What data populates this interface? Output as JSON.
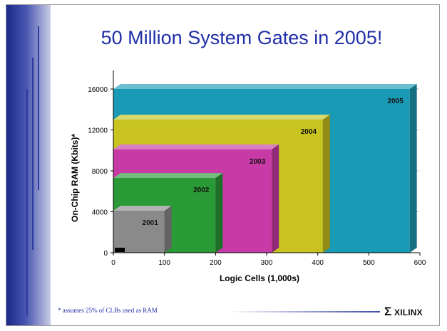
{
  "slide": {
    "title": "50 Million System Gates in 2005!",
    "footnote": "* assumes 25% of CLBs used as RAM",
    "logo": "XILINX",
    "logo_mark": "Σ"
  },
  "chart_data": {
    "type": "area",
    "title": "50 Million System Gates in 2005!",
    "xlabel": "Logic Cells (1,000s)",
    "ylabel": "On-Chip RAM (Kbits)*",
    "xlim": [
      0,
      600
    ],
    "ylim": [
      0,
      16000
    ],
    "x_ticks": [
      0,
      100,
      200,
      300,
      400,
      500,
      600
    ],
    "y_ticks": [
      0,
      4000,
      8000,
      12000,
      16000
    ],
    "grid": "horizontal dashed",
    "series": [
      {
        "name": "2005",
        "logic_cells": 580,
        "ram_kbits": 16000,
        "color": "#1a9bb5"
      },
      {
        "name": "2004",
        "logic_cells": 410,
        "ram_kbits": 13000,
        "color": "#c8c31e"
      },
      {
        "name": "2003",
        "logic_cells": 310,
        "ram_kbits": 10100,
        "color": "#c83aa6"
      },
      {
        "name": "2002",
        "logic_cells": 200,
        "ram_kbits": 7300,
        "color": "#2a9a36"
      },
      {
        "name": "2001",
        "logic_cells": 100,
        "ram_kbits": 4100,
        "color": "#8a8a8a"
      }
    ]
  }
}
